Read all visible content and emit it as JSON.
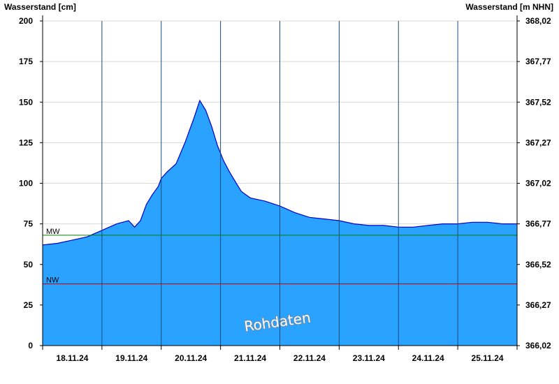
{
  "chart_data": {
    "type": "area",
    "title": "",
    "ylabel_left": "Wasserstand [cm]",
    "ylabel_right": "Wasserstand [m NHN]",
    "ylim": [
      0,
      200
    ],
    "y_ticks_left": [
      0,
      25,
      50,
      75,
      100,
      125,
      150,
      175,
      200
    ],
    "y_ticks_right": [
      "366,02",
      "366,27",
      "366,52",
      "366,77",
      "367,02",
      "367,27",
      "367,52",
      "367,77",
      "368,02"
    ],
    "x_tick_labels": [
      "18.11.24",
      "19.11.24",
      "20.11.24",
      "21.11.24",
      "22.11.24",
      "23.11.24",
      "24.11.24",
      "25.11.24"
    ],
    "x_range_days": [
      0,
      8
    ],
    "grid": true,
    "fill_color": "#29a3ff",
    "line_color": "#0000cc",
    "series": [
      {
        "x": [
          0.0,
          0.25,
          0.5,
          0.75,
          1.0,
          1.25,
          1.45,
          1.55,
          1.65,
          1.75,
          1.85,
          1.95,
          2.0,
          2.1,
          2.25,
          2.4,
          2.55,
          2.65,
          2.75,
          2.85,
          2.95,
          3.05,
          3.15,
          3.25,
          3.35,
          3.5,
          3.75,
          4.0,
          4.25,
          4.5,
          4.75,
          5.0,
          5.25,
          5.5,
          5.75,
          6.0,
          6.25,
          6.5,
          6.75,
          7.0,
          7.25,
          7.5,
          7.75,
          8.0
        ],
        "values": [
          62,
          63,
          65,
          67,
          71,
          75,
          77,
          73,
          77,
          87,
          93,
          98,
          103,
          107,
          112,
          125,
          140,
          151,
          145,
          135,
          123,
          114,
          107,
          101,
          95,
          91,
          89,
          86,
          82,
          79,
          78,
          77,
          75,
          74,
          74,
          73,
          73,
          74,
          75,
          75,
          76,
          76,
          75,
          75
        ]
      }
    ],
    "reference_lines": [
      {
        "label": "MW",
        "value": 68,
        "color": "#008000"
      },
      {
        "label": "NW",
        "value": 38,
        "color": "#c00000"
      }
    ],
    "watermark": "Rohdaten"
  }
}
